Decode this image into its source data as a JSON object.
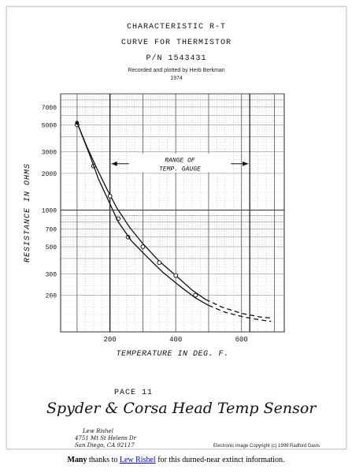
{
  "header": {
    "line1": "CHARACTERISTIC  R-T",
    "line2": "CURVE FOR THERMISTOR",
    "line3": "P/N 1543431",
    "credit": "Recorded and plotted by Herb Berkman",
    "year": "1974"
  },
  "chart_data": {
    "type": "line",
    "ylabel": "RESISTANCE  IN  OHMS",
    "xlabel": "TEMPERATURE  IN  DEG. F.",
    "yscale": "log",
    "ylim": [
      100,
      9000
    ],
    "xlim": [
      50,
      730
    ],
    "x_ticks": [
      "200",
      "400",
      "600"
    ],
    "x_tick_values": [
      200,
      400,
      600
    ],
    "y_ticks": [
      "200",
      "300",
      "500",
      "700",
      "1000",
      "2000",
      "3000",
      "5000",
      "7000"
    ],
    "y_tick_values": [
      200,
      300,
      500,
      700,
      1000,
      2000,
      3000,
      5000,
      7000
    ],
    "range_annotation": [
      "RANGE OF",
      "TEMP. GAUGE"
    ],
    "range_x": [
      200,
      625
    ],
    "series": [
      {
        "points": [
          [
            100,
            5000
          ],
          [
            150,
            2300
          ],
          [
            200,
            1300
          ],
          [
            225,
            850
          ],
          [
            255,
            600
          ],
          [
            300,
            500
          ],
          [
            350,
            370
          ],
          [
            400,
            290
          ],
          [
            460,
            200
          ]
        ],
        "curve_solid": [
          [
            100,
            5200
          ],
          [
            130,
            3300
          ],
          [
            160,
            2200
          ],
          [
            190,
            1500
          ],
          [
            220,
            1050
          ],
          [
            260,
            720
          ],
          [
            300,
            530
          ],
          [
            350,
            380
          ],
          [
            400,
            290
          ],
          [
            450,
            220
          ],
          [
            490,
            185
          ]
        ],
        "curve_dashed": [
          [
            490,
            185
          ],
          [
            540,
            160
          ],
          [
            600,
            142
          ],
          [
            660,
            132
          ],
          [
            690,
            130
          ]
        ]
      },
      {
        "curve_solid": [
          [
            100,
            5200
          ],
          [
            135,
            3000
          ],
          [
            165,
            1800
          ],
          [
            195,
            1200
          ],
          [
            225,
            800
          ],
          [
            265,
            560
          ],
          [
            310,
            420
          ],
          [
            360,
            310
          ],
          [
            410,
            240
          ],
          [
            460,
            190
          ],
          [
            500,
            165
          ]
        ],
        "curve_dashed": [
          [
            500,
            165
          ],
          [
            550,
            145
          ],
          [
            610,
            132
          ],
          [
            660,
            125
          ],
          [
            690,
            122
          ]
        ]
      }
    ]
  },
  "page_label": "PACE 11",
  "handwritten_note": "Spyder & Corsa Head Temp Sensor",
  "address": {
    "name": "Lew Rishel",
    "street": "4751 Mt St Helens Dr",
    "city": "San Diego, CA 92117"
  },
  "copyright": "Electronic image Copyright (c) 1999 Radford Davis",
  "footer": {
    "bold": "Many",
    "pre": " thanks to ",
    "link": "Lew Rishel",
    "post": " for this durned-near extinct information."
  }
}
